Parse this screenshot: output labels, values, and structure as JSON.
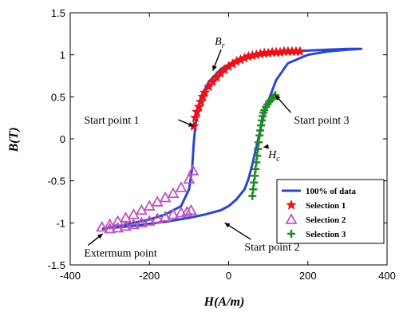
{
  "chart_data": {
    "type": "line",
    "xlabel": "H(A/m)",
    "ylabel": "B(T)",
    "xlim": [
      -400,
      400
    ],
    "ylim": [
      -1.5,
      1.5
    ],
    "x_ticks": [
      "-400",
      "-200",
      "0",
      "200",
      "400"
    ],
    "y_ticks": [
      "-1.5",
      "-1",
      "-0.5",
      "0",
      "0.5",
      "1",
      "1.5"
    ],
    "grid": false,
    "legend_position": "bottom-right",
    "series": [
      {
        "name": "100% of data",
        "color": "#2b47c7",
        "x": [
          -320,
          -280,
          -240,
          -200,
          -160,
          -120,
          -100,
          -92,
          -88,
          -84,
          -80,
          -70,
          -50,
          -20,
          20,
          60,
          100,
          150,
          200,
          250,
          300,
          335,
          300,
          250,
          200,
          150,
          120,
          100,
          90,
          80,
          70,
          60,
          50,
          40,
          20,
          0,
          -20,
          -60,
          -100,
          -150,
          -200,
          -250,
          -300,
          -320
        ],
        "y": [
          -1.07,
          -1.04,
          -1.0,
          -0.96,
          -0.9,
          -0.8,
          -0.6,
          -0.35,
          -0.05,
          0.15,
          0.3,
          0.5,
          0.68,
          0.83,
          0.94,
          1.0,
          1.03,
          1.04,
          1.05,
          1.06,
          1.07,
          1.07,
          1.06,
          1.04,
          1.0,
          0.9,
          0.7,
          0.45,
          0.3,
          0.1,
          -0.1,
          -0.3,
          -0.48,
          -0.6,
          -0.72,
          -0.8,
          -0.85,
          -0.9,
          -0.94,
          -0.98,
          -1.01,
          -1.04,
          -1.06,
          -1.07
        ]
      },
      {
        "name": "Selection 1",
        "color": "#e8141b",
        "marker": "star",
        "x": [
          -88,
          -84,
          -80,
          -75,
          -70,
          -65,
          -60,
          -50,
          -40,
          -30,
          -20,
          -10,
          0,
          10,
          20,
          30,
          40,
          50,
          60,
          70,
          80,
          90,
          100,
          110,
          120,
          130,
          140,
          150,
          160,
          170,
          180
        ],
        "y": [
          0.15,
          0.25,
          0.32,
          0.38,
          0.44,
          0.5,
          0.55,
          0.62,
          0.68,
          0.73,
          0.78,
          0.82,
          0.86,
          0.89,
          0.92,
          0.94,
          0.96,
          0.98,
          0.99,
          1.0,
          1.01,
          1.02,
          1.02,
          1.03,
          1.03,
          1.03,
          1.04,
          1.04,
          1.04,
          1.04,
          1.04
        ]
      },
      {
        "name": "Selection 2",
        "color": "#c054be",
        "marker": "triangle",
        "x": [
          -320,
          -300,
          -280,
          -260,
          -240,
          -220,
          -200,
          -180,
          -160,
          -140,
          -120,
          -100,
          -90,
          -300,
          -280,
          -260,
          -240,
          -220,
          -200,
          -180,
          -160,
          -140,
          -120,
          -105,
          -95
        ],
        "y": [
          -1.05,
          -1.02,
          -0.98,
          -0.94,
          -0.9,
          -0.85,
          -0.8,
          -0.75,
          -0.7,
          -0.65,
          -0.58,
          -0.48,
          -0.38,
          -1.07,
          -1.06,
          -1.04,
          -1.02,
          -1.0,
          -0.98,
          -0.95,
          -0.93,
          -0.9,
          -0.88,
          -0.87,
          -0.85
        ]
      },
      {
        "name": "Selection 3",
        "color": "#1f8a2a",
        "marker": "plus",
        "x": [
          60,
          62,
          64,
          66,
          68,
          70,
          72,
          74,
          76,
          78,
          80,
          82,
          84,
          86,
          88,
          90,
          94,
          98,
          102,
          106,
          110,
          114,
          118
        ],
        "y": [
          -0.68,
          -0.6,
          -0.52,
          -0.44,
          -0.36,
          -0.28,
          -0.2,
          -0.12,
          -0.04,
          0.04,
          0.1,
          0.16,
          0.22,
          0.27,
          0.31,
          0.34,
          0.38,
          0.41,
          0.44,
          0.46,
          0.48,
          0.5,
          0.52
        ]
      }
    ],
    "annotations": [
      {
        "text": "B",
        "sub": "r",
        "italic": true,
        "x": -35,
        "y": 1.12,
        "arrow_to": [
          -40,
          0.81
        ]
      },
      {
        "text": "Start point 1",
        "x": -365,
        "y": 0.18,
        "arrow_to": [
          -88,
          0.15
        ]
      },
      {
        "text": "Start point 3",
        "x": 165,
        "y": 0.18,
        "arrow_to": [
          118,
          0.52
        ]
      },
      {
        "text": "H",
        "sub": "c",
        "italic": true,
        "x": 100,
        "y": -0.23,
        "arrow_to": [
          88,
          -0.1
        ]
      },
      {
        "text": "Start point 2",
        "x": 40,
        "y": -1.33,
        "arrow_to": [
          -10,
          -1.0
        ]
      },
      {
        "text": "Extermum point",
        "x": -365,
        "y": -1.4,
        "arrow_to": [
          -318,
          -1.13
        ]
      }
    ]
  }
}
